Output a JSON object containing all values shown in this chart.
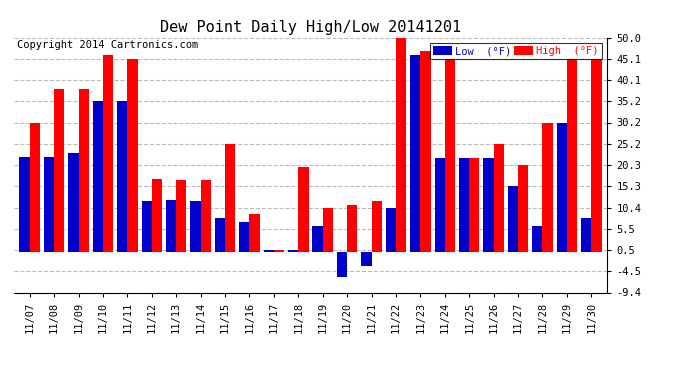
{
  "title": "Dew Point Daily High/Low 20141201",
  "copyright": "Copyright 2014 Cartronics.com",
  "legend_low": "Low  (°F)",
  "legend_high": "High  (°F)",
  "dates": [
    "11/07",
    "11/08",
    "11/09",
    "11/10",
    "11/11",
    "11/12",
    "11/13",
    "11/14",
    "11/15",
    "11/16",
    "11/17",
    "11/18",
    "11/19",
    "11/20",
    "11/21",
    "11/22",
    "11/23",
    "11/24",
    "11/25",
    "11/26",
    "11/27",
    "11/28",
    "11/29",
    "11/30"
  ],
  "high": [
    30.2,
    37.9,
    37.9,
    46.0,
    45.1,
    17.1,
    16.9,
    16.9,
    25.2,
    9.0,
    0.5,
    19.9,
    10.4,
    11.0,
    12.0,
    50.0,
    46.9,
    45.1,
    21.9,
    25.2,
    20.3,
    30.0,
    45.1,
    45.1
  ],
  "low": [
    22.1,
    22.1,
    23.0,
    35.2,
    35.2,
    11.9,
    12.1,
    11.9,
    7.9,
    7.0,
    0.5,
    0.5,
    6.1,
    -5.8,
    -3.2,
    10.4,
    46.0,
    21.9,
    21.9,
    21.9,
    15.3,
    6.1,
    30.2,
    7.9
  ],
  "ylim": [
    -9.4,
    50.0
  ],
  "yticks": [
    -9.4,
    -4.5,
    0.5,
    5.5,
    10.4,
    15.3,
    20.3,
    25.2,
    30.2,
    35.2,
    40.1,
    45.1,
    50.0
  ],
  "bar_width": 0.42,
  "high_color": "#FF0000",
  "low_color": "#0000CC",
  "bg_color": "#FFFFFF",
  "plot_bg_color": "#FFFFFF",
  "grid_color": "#BBBBBB",
  "title_fontsize": 11,
  "tick_fontsize": 7.5,
  "copyright_fontsize": 7.5
}
